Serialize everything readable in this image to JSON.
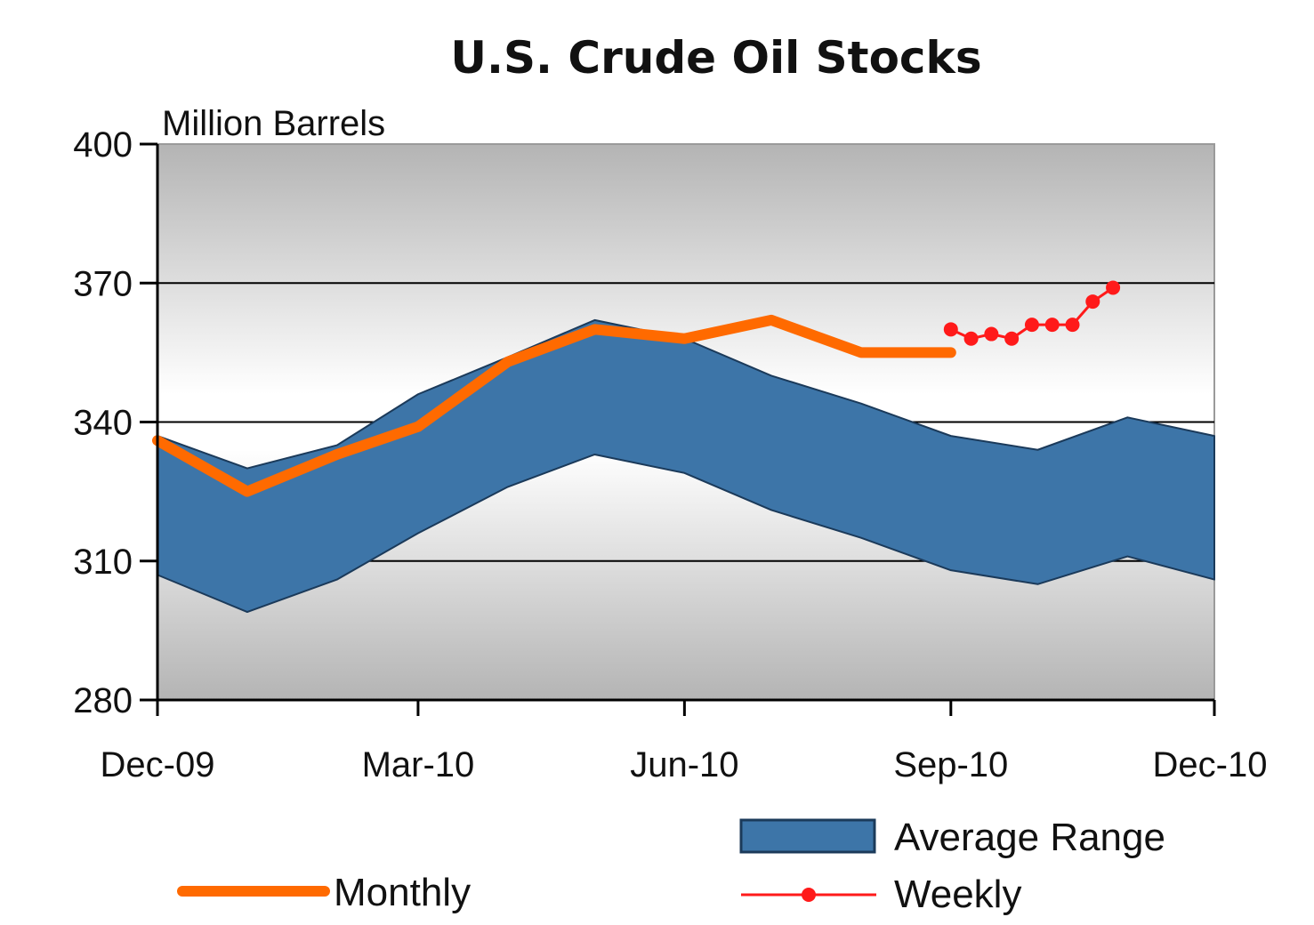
{
  "chart_data": {
    "type": "area",
    "title": "U.S. Crude Oil Stocks",
    "unit_label": "Million Barrels",
    "xlabel": "",
    "ylabel": "",
    "x_axis": {
      "type": "date",
      "min": "2009-12-01",
      "max": "2010-12-01",
      "ticks": [
        "2009-12-01",
        "2010-03-01",
        "2010-06-01",
        "2010-09-01",
        "2010-12-01"
      ],
      "tick_labels": [
        "Dec-09",
        "Mar-10",
        "Jun-10",
        "Sep-10",
        "Dec-10"
      ]
    },
    "y_axis": {
      "min": 280,
      "max": 400,
      "ticks": [
        280,
        310,
        340,
        370,
        400
      ],
      "tick_labels": [
        "280",
        "310",
        "340",
        "370",
        "400"
      ]
    },
    "grid": "horizontal",
    "legend_position": "bottom",
    "series": [
      {
        "name": "Average Range",
        "kind": "band",
        "color": "#3d75a8",
        "x": [
          "2009-12-01",
          "2010-01-01",
          "2010-02-01",
          "2010-03-01",
          "2010-04-01",
          "2010-05-01",
          "2010-06-01",
          "2010-07-01",
          "2010-08-01",
          "2010-09-01",
          "2010-10-01",
          "2010-11-01",
          "2010-12-01"
        ],
        "upper": [
          337,
          330,
          335,
          346,
          354,
          362,
          358,
          350,
          344,
          337,
          334,
          341,
          337
        ],
        "lower": [
          307,
          299,
          306,
          316,
          326,
          333,
          329,
          321,
          315,
          308,
          305,
          311,
          306
        ]
      },
      {
        "name": "Monthly",
        "kind": "line",
        "color": "#ff6a00",
        "x": [
          "2009-12-01",
          "2010-01-01",
          "2010-02-01",
          "2010-03-01",
          "2010-04-01",
          "2010-05-01",
          "2010-06-01",
          "2010-07-01",
          "2010-08-01",
          "2010-09-01"
        ],
        "values": [
          336,
          325,
          333,
          339,
          353,
          360,
          358,
          362,
          355,
          355
        ]
      },
      {
        "name": "Weekly",
        "kind": "line-markers",
        "color": "#ff1a1a",
        "x": [
          "2010-09-01",
          "2010-09-08",
          "2010-09-15",
          "2010-09-22",
          "2010-09-29",
          "2010-10-06",
          "2010-10-13",
          "2010-10-20",
          "2010-10-27"
        ],
        "values": [
          360,
          358,
          359,
          358,
          361,
          361,
          361,
          366,
          369
        ]
      }
    ]
  }
}
